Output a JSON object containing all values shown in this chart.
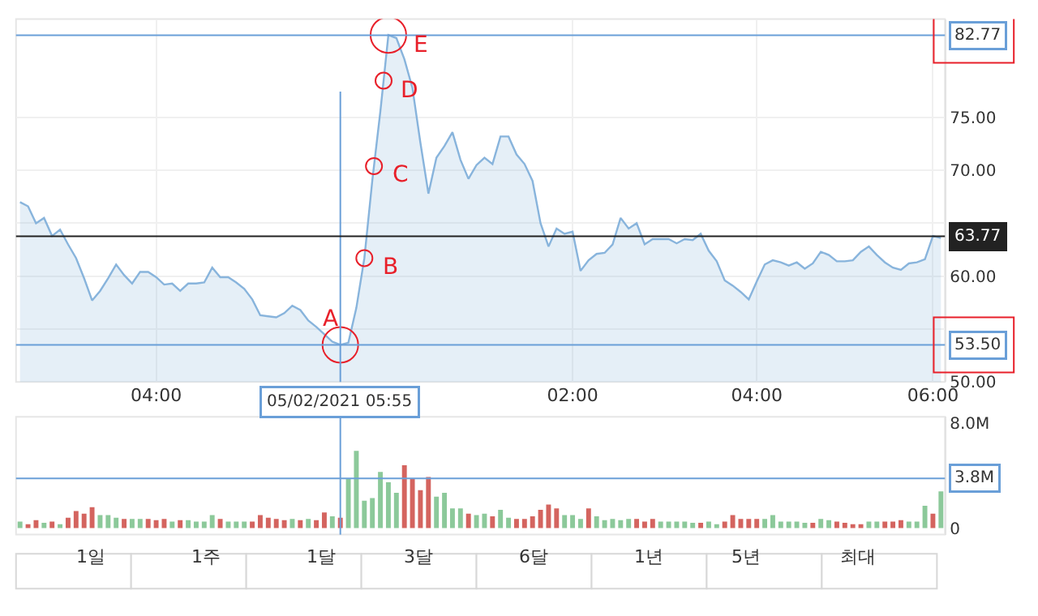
{
  "chart_data": [
    {
      "type": "area",
      "categories": [
        null,
        null,
        null,
        null,
        null,
        null,
        null,
        null,
        null,
        null,
        null,
        null,
        null,
        null,
        null,
        null,
        null,
        "04:00",
        null,
        null,
        null,
        null,
        null,
        null,
        null,
        null,
        null,
        null,
        null,
        null,
        null,
        null,
        null,
        null,
        null,
        null,
        null,
        null,
        null,
        null,
        null,
        null,
        null,
        null,
        null,
        null,
        null,
        null,
        null,
        null,
        null,
        null,
        null,
        null,
        null,
        null,
        null,
        null,
        null,
        null,
        null,
        null,
        null,
        null,
        null,
        null,
        null,
        null,
        null,
        "02:00",
        null,
        null,
        null,
        null,
        null,
        null,
        null,
        null,
        null,
        null,
        null,
        null,
        null,
        null,
        null,
        null,
        null,
        null,
        null,
        null,
        null,
        null,
        "04:00",
        null,
        null,
        null,
        null,
        null,
        null,
        null,
        null,
        null,
        null,
        null,
        null,
        null,
        null,
        null,
        null,
        null,
        null,
        null,
        null,
        null,
        "06:00",
        null
      ],
      "series": [
        {
          "color": "#88b4dc",
          "values": [
            67.0,
            66.6,
            65.0,
            65.5,
            63.8,
            64.4,
            63.0,
            61.7,
            59.8,
            57.7,
            58.6,
            59.8,
            61.1,
            60.1,
            59.3,
            60.4,
            60.4,
            59.9,
            59.2,
            59.3,
            58.6,
            59.3,
            59.3,
            59.4,
            60.8,
            59.9,
            59.9,
            59.4,
            58.8,
            57.8,
            56.3,
            56.2,
            56.1,
            56.5,
            57.2,
            56.8,
            55.8,
            55.2,
            54.5,
            53.8,
            53.5,
            53.7,
            57.0,
            61.7,
            69.1,
            75.6,
            82.8,
            82.5,
            80.5,
            77.8,
            72.6,
            67.8,
            71.2,
            72.3,
            73.6,
            71.0,
            69.2,
            70.5,
            71.2,
            70.6,
            73.2,
            73.2,
            71.5,
            70.6,
            69.0,
            65.0,
            62.8,
            64.5,
            64.0,
            64.2,
            60.5,
            61.5,
            62.1,
            62.2,
            63.0,
            65.5,
            64.5,
            65.0,
            63.0,
            63.5,
            63.5,
            63.5,
            63.1,
            63.5,
            63.4,
            64.0,
            62.4,
            61.4,
            59.6,
            59.1,
            58.5,
            57.8,
            59.5,
            61.1,
            61.5,
            61.3,
            61.0,
            61.3,
            60.7,
            61.2,
            62.3,
            62.0,
            61.4,
            61.4,
            61.5,
            62.3,
            62.8,
            62.0,
            61.3,
            60.8,
            60.6,
            61.2,
            61.3,
            61.6,
            63.8,
            63.6
          ]
        }
      ],
      "ylim": [
        50,
        84.3
      ],
      "yticks": [
        {
          "value": 50,
          "label": "50.00"
        },
        {
          "value": 55,
          "label": null
        },
        {
          "value": 60,
          "label": "60.00"
        },
        {
          "value": 65,
          "label": null
        },
        {
          "value": 70,
          "label": "70.00"
        },
        {
          "value": 75,
          "label": "75.00"
        }
      ],
      "grid": true,
      "ref_lines": [
        {
          "axis": "y",
          "value": 82.77,
          "label": "82.77",
          "color": "#6a9fd8"
        },
        {
          "axis": "y",
          "value": 63.77,
          "label": "63.77",
          "color": "#222222"
        },
        {
          "axis": "y",
          "value": 53.5,
          "label": "53.50",
          "color": "#6a9fd8"
        }
      ],
      "annotations": [
        {
          "text": "A",
          "y": 53.5
        },
        "B",
        "C",
        "D",
        {
          "text": "E",
          "y": 82.8
        },
        "05/02/2021 05:55"
      ]
    },
    {
      "type": "bar",
      "categories": [
        null,
        null,
        null,
        null,
        null,
        null,
        null,
        null,
        null,
        null,
        null,
        null,
        null,
        null,
        null,
        null,
        null,
        null,
        null,
        null,
        null,
        null,
        null,
        null,
        null,
        null,
        null,
        null,
        null,
        null,
        null,
        null,
        null,
        null,
        null,
        null,
        null,
        null,
        null,
        null,
        null,
        null,
        null,
        null,
        null,
        null,
        null,
        null,
        null,
        null,
        null,
        null,
        null,
        null,
        null,
        null,
        null,
        null,
        null,
        null,
        null,
        null,
        null,
        null,
        null,
        null,
        null,
        null,
        null,
        null,
        null,
        null,
        null,
        null,
        null,
        null,
        null,
        null,
        null,
        null,
        null,
        null,
        null,
        null,
        null,
        null,
        null,
        null,
        null,
        null,
        null,
        null,
        null,
        null,
        null,
        null,
        null,
        null,
        null,
        null,
        null,
        null,
        null,
        null,
        null,
        null,
        null,
        null,
        null,
        null,
        null,
        null,
        null,
        null,
        null,
        null
      ],
      "values": [
        0.5,
        0.3,
        0.6,
        0.4,
        0.5,
        0.3,
        0.8,
        1.3,
        1.1,
        1.6,
        1.0,
        1.0,
        0.8,
        0.7,
        0.7,
        0.7,
        0.7,
        0.6,
        0.7,
        0.5,
        0.6,
        0.6,
        0.5,
        0.5,
        1.0,
        0.7,
        0.5,
        0.5,
        0.5,
        0.5,
        1.0,
        0.8,
        0.7,
        0.6,
        0.7,
        0.6,
        0.7,
        0.6,
        1.2,
        0.9,
        0.8,
        3.8,
        5.9,
        2.1,
        2.3,
        4.3,
        3.5,
        2.7,
        4.8,
        3.8,
        2.9,
        3.9,
        2.4,
        2.7,
        1.5,
        1.5,
        1.1,
        1.0,
        1.1,
        0.9,
        1.4,
        0.8,
        0.7,
        0.7,
        0.9,
        1.4,
        1.8,
        1.5,
        1.0,
        1.0,
        0.7,
        1.5,
        0.9,
        0.6,
        0.7,
        0.6,
        0.7,
        0.7,
        0.5,
        0.7,
        0.5,
        0.5,
        0.5,
        0.5,
        0.4,
        0.4,
        0.5,
        0.3,
        0.5,
        1.0,
        0.7,
        0.7,
        0.7,
        0.7,
        1.0,
        0.5,
        0.5,
        0.5,
        0.4,
        0.4,
        0.7,
        0.6,
        0.5,
        0.4,
        0.3,
        0.3,
        0.5,
        0.5,
        0.5,
        0.5,
        0.6,
        0.5,
        0.5,
        1.7,
        1.1,
        2.8
      ],
      "colors": [
        "#8cc99a",
        "#d4645f",
        "#d4645f",
        "#8cc99a",
        "#d4645f",
        "#8cc99a",
        "#d4645f",
        "#d4645f",
        "#d4645f",
        "#d4645f",
        "#8cc99a",
        "#8cc99a",
        "#8cc99a",
        "#d4645f",
        "#8cc99a",
        "#8cc99a",
        "#d4645f",
        "#d4645f",
        "#d4645f",
        "#8cc99a",
        "#d4645f",
        "#8cc99a",
        "#8cc99a",
        "#8cc99a",
        "#8cc99a",
        "#d4645f",
        "#8cc99a",
        "#8cc99a",
        "#8cc99a",
        "#d4645f",
        "#d4645f",
        "#d4645f",
        "#d4645f",
        "#d4645f",
        "#8cc99a",
        "#d4645f",
        "#8cc99a",
        "#d4645f",
        "#d4645f",
        "#8cc99a",
        "#d4645f",
        "#8cc99a",
        "#8cc99a",
        "#8cc99a",
        "#8cc99a",
        "#8cc99a",
        "#8cc99a",
        "#8cc99a",
        "#d4645f",
        "#d4645f",
        "#d4645f",
        "#d4645f",
        "#8cc99a",
        "#8cc99a",
        "#8cc99a",
        "#8cc99a",
        "#d4645f",
        "#8cc99a",
        "#8cc99a",
        "#d4645f",
        "#8cc99a",
        "#8cc99a",
        "#d4645f",
        "#d4645f",
        "#d4645f",
        "#d4645f",
        "#d4645f",
        "#d4645f",
        "#8cc99a",
        "#8cc99a",
        "#8cc99a",
        "#d4645f",
        "#8cc99a",
        "#8cc99a",
        "#8cc99a",
        "#8cc99a",
        "#8cc99a",
        "#d4645f",
        "#d4645f",
        "#d4645f",
        "#8cc99a",
        "#8cc99a",
        "#8cc99a",
        "#8cc99a",
        "#8cc99a",
        "#d4645f",
        "#8cc99a",
        "#8cc99a",
        "#d4645f",
        "#d4645f",
        "#d4645f",
        "#d4645f",
        "#d4645f",
        "#8cc99a",
        "#8cc99a",
        "#8cc99a",
        "#8cc99a",
        "#8cc99a",
        "#8cc99a",
        "#d4645f",
        "#8cc99a",
        "#8cc99a",
        "#d4645f",
        "#d4645f",
        "#d4645f",
        "#d4645f",
        "#8cc99a",
        "#8cc99a",
        "#d4645f",
        "#d4645f",
        "#d4645f",
        "#8cc99a",
        "#8cc99a",
        "#8cc99a",
        "#d4645f",
        "#8cc99a"
      ],
      "ylim": [
        -0.5,
        8.5
      ],
      "yticks": [
        0,
        {
          "value": 8,
          "label": "8.0M"
        }
      ],
      "tick_labels": "y",
      "ref_lines": [
        {
          "axis": "y",
          "value": 3.8,
          "label": "3.8M",
          "color": "#6a9fd8"
        }
      ]
    },
    {
      "type": "other",
      "annotations": [
        "1일",
        "1주",
        "1달",
        "3달",
        "6달",
        "1년",
        "5년",
        "최대"
      ]
    }
  ]
}
